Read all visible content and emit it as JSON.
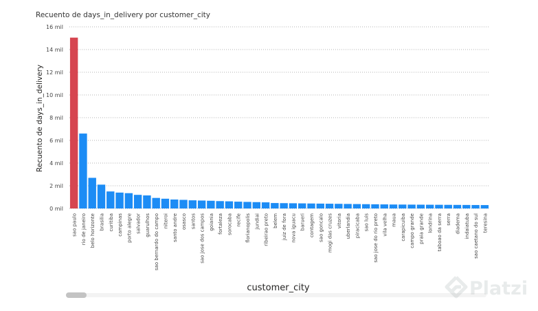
{
  "chart_data": {
    "type": "bar",
    "title": "Recuento de days_in_delivery por customer_city",
    "xlabel": "customer_city",
    "ylabel": "Recuento de days_in_delivery",
    "ylim": [
      0,
      16000
    ],
    "yticks": [
      "0 mil",
      "2 mil",
      "4 mil",
      "6 mil",
      "8 mil",
      "10 mil",
      "12 mil",
      "14 mil",
      "16 mil"
    ],
    "grid": true,
    "highlight_color": "#d64550",
    "bar_color": "#1c8cf5",
    "highlight_index": 0,
    "categories": [
      "sao paulo",
      "rio de janeiro",
      "belo horizonte",
      "brasilia",
      "curitiba",
      "campinas",
      "porto alegre",
      "salvador",
      "guarulhos",
      "sao bernardo do campo",
      "niteroi",
      "santo andre",
      "osasco",
      "santos",
      "sao jose dos campos",
      "goiania",
      "fortaleza",
      "sorocaba",
      "recife",
      "florianopolis",
      "jundiai",
      "ribeirao preto",
      "belem",
      "juiz de fora",
      "nova iguacu",
      "barueri",
      "contagem",
      "sao goncalo",
      "mogi das cruzes",
      "vitoria",
      "uberlandia",
      "piracicaba",
      "sao luis",
      "sao jose do rio preto",
      "vila velha",
      "maua",
      "carapicuiba",
      "campo grande",
      "praia grande",
      "londrina",
      "taboao da serra",
      "serra",
      "diadema",
      "indaiatuba",
      "sao caetano do sul",
      "teresina"
    ],
    "values": [
      15050,
      6600,
      2700,
      2100,
      1500,
      1400,
      1350,
      1200,
      1150,
      930,
      860,
      790,
      760,
      720,
      700,
      680,
      650,
      630,
      600,
      580,
      560,
      540,
      480,
      470,
      460,
      450,
      440,
      430,
      420,
      410,
      400,
      390,
      380,
      370,
      360,
      350,
      345,
      340,
      335,
      330,
      325,
      320,
      315,
      310,
      305,
      300
    ]
  },
  "watermark": {
    "text": "Platzi"
  }
}
